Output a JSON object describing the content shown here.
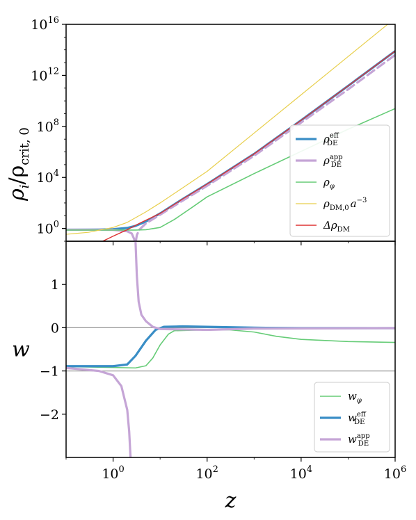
{
  "colors": {
    "rho_eff": "#3a8ec6",
    "rho_app": "#c5a5d6",
    "rho_phi": "#66cc77",
    "rho_dm0": "#e8cf4c",
    "delta_dm": "#dd3333",
    "ref_line": "#999999"
  },
  "chart_data": [
    {
      "type": "line",
      "name": "densities",
      "xscale": "log",
      "yscale": "log",
      "xlim": [
        0.1,
        1000000
      ],
      "ylim": [
        0.1,
        10000000000000000
      ],
      "ylabel": "ρ_i/ρ_crit,0",
      "yticks": [
        {
          "value": 1,
          "base": "10",
          "exp": "0"
        },
        {
          "value": 10000,
          "base": "10",
          "exp": "4"
        },
        {
          "value": 100000000,
          "base": "10",
          "exp": "8"
        },
        {
          "value": 1000000000000,
          "base": "10",
          "exp": "12"
        },
        {
          "value": 10000000000000000,
          "base": "10",
          "exp": "16"
        }
      ],
      "legend_position": "lower-right",
      "series": [
        {
          "key": "rho_eff",
          "name": "ρ_DE^eff",
          "style": "solid",
          "width": 3.2,
          "points": [
            [
              0.1,
              0.8
            ],
            [
              0.5,
              0.82
            ],
            [
              1,
              0.87
            ],
            [
              2,
              1.1
            ],
            [
              3,
              1.6
            ],
            [
              5,
              3.5
            ],
            [
              10,
              15
            ],
            [
              30,
              200
            ],
            [
              100,
              3000
            ],
            [
              1000,
              700000
            ],
            [
              10000,
              300000000
            ],
            [
              100000,
              150000000000
            ],
            [
              1000000,
              80000000000000
            ]
          ]
        },
        {
          "key": "rho_app",
          "name": "ρ_DE^app",
          "style": "solid",
          "width": 3.2,
          "points": [
            [
              0.1,
              0.8
            ],
            [
              0.5,
              0.8
            ],
            [
              1,
              0.78
            ],
            [
              2,
              0.6
            ],
            [
              2.5,
              0.4
            ],
            [
              2.8,
              0.15
            ],
            [
              2.92,
              0.1
            ]
          ]
        },
        {
          "key": "rho_app",
          "name": "",
          "style": "dashed",
          "width": 3.2,
          "points": [
            [
              3.05,
              0.1
            ],
            [
              3.2,
              0.3
            ],
            [
              3.6,
              0.8
            ],
            [
              5,
              2.5
            ],
            [
              10,
              12
            ],
            [
              30,
              150
            ],
            [
              100,
              2200
            ],
            [
              1000,
              500000
            ],
            [
              10000,
              200000000
            ],
            [
              100000,
              80000000000
            ],
            [
              1000000,
              40000000000000
            ]
          ]
        },
        {
          "key": "rho_phi",
          "name": "ρ_φ",
          "style": "solid",
          "width": 1.6,
          "points": [
            [
              0.1,
              0.75
            ],
            [
              1,
              0.75
            ],
            [
              3,
              0.75
            ],
            [
              5,
              0.8
            ],
            [
              10,
              1.2
            ],
            [
              20,
              5
            ],
            [
              50,
              50
            ],
            [
              100,
              300
            ],
            [
              1000,
              20000
            ],
            [
              10000,
              1100000
            ],
            [
              100000,
              60000000
            ],
            [
              1000000,
              2500000000
            ]
          ]
        },
        {
          "key": "rho_dm0",
          "name": "ρ_DM,0 a^-3",
          "style": "solid",
          "width": 1.2,
          "points": [
            [
              0.1,
              0.35
            ],
            [
              0.3,
              0.5
            ],
            [
              1,
              1.2
            ],
            [
              2,
              3
            ],
            [
              5,
              20
            ],
            [
              10,
              100
            ],
            [
              30,
              1500
            ],
            [
              100,
              30000
            ],
            [
              1000,
              30000000
            ],
            [
              10000,
              30000000000
            ],
            [
              100000,
              30000000000000
            ],
            [
              1000000,
              30000000000000000
            ]
          ]
        },
        {
          "key": "delta_dm",
          "name": "Δρ_DM",
          "style": "solid",
          "width": 1.4,
          "points": [
            [
              0.6,
              0.1
            ],
            [
              1,
              0.25
            ],
            [
              2,
              0.8
            ],
            [
              4,
              3
            ],
            [
              10,
              15
            ],
            [
              30,
              200
            ],
            [
              100,
              3000
            ],
            [
              1000,
              700000
            ],
            [
              10000,
              300000000
            ],
            [
              100000,
              150000000000
            ],
            [
              1000000,
              80000000000000
            ]
          ]
        }
      ],
      "legend": [
        {
          "key": "rho_eff",
          "base": "ρ",
          "sub": "DE",
          "sup": "eff",
          "width": 3.2
        },
        {
          "key": "rho_app",
          "base": "ρ",
          "sub": "DE",
          "sup": "app",
          "width": 3.2
        },
        {
          "key": "rho_phi",
          "base": "ρ",
          "sub": "φ",
          "sup": "",
          "width": 1.6
        },
        {
          "key": "rho_dm0",
          "base": "ρ",
          "sub": "DM,0",
          "sup": "",
          "tail": "a",
          "tailsup": "−3",
          "width": 1.2
        },
        {
          "key": "delta_dm",
          "base": "Δρ",
          "sub": "DM",
          "sup": "",
          "width": 1.4
        }
      ]
    },
    {
      "type": "line",
      "name": "equation-of-state",
      "xscale": "log",
      "yscale": "linear",
      "xlim": [
        0.1,
        1000000
      ],
      "ylim": [
        -3,
        2
      ],
      "xlabel": "z",
      "ylabel": "w",
      "yticks": [
        {
          "value": 1,
          "label": "1"
        },
        {
          "value": 0,
          "label": "0"
        },
        {
          "value": -1,
          "label": "−1"
        },
        {
          "value": -2,
          "label": "−2"
        }
      ],
      "xticks": [
        {
          "value": 1,
          "base": "10",
          "exp": "0"
        },
        {
          "value": 100,
          "base": "10",
          "exp": "2"
        },
        {
          "value": 10000,
          "base": "10",
          "exp": "4"
        },
        {
          "value": 1000000,
          "base": "10",
          "exp": "6"
        }
      ],
      "reference_lines": [
        0,
        -1
      ],
      "legend_position": "lower-right",
      "series": [
        {
          "key": "rho_phi",
          "name": "w_φ",
          "style": "solid",
          "width": 1.6,
          "points": [
            [
              0.1,
              -0.9
            ],
            [
              1,
              -0.92
            ],
            [
              3,
              -0.93
            ],
            [
              5,
              -0.88
            ],
            [
              7,
              -0.7
            ],
            [
              10,
              -0.4
            ],
            [
              15,
              -0.15
            ],
            [
              20,
              -0.07
            ],
            [
              100,
              -0.05
            ],
            [
              300,
              -0.05
            ],
            [
              1000,
              -0.1
            ],
            [
              3000,
              -0.2
            ],
            [
              10000,
              -0.27
            ],
            [
              100000,
              -0.32
            ],
            [
              1000000,
              -0.34
            ]
          ]
        },
        {
          "key": "rho_eff",
          "name": "w_DE^eff",
          "style": "solid",
          "width": 3.2,
          "points": [
            [
              0.1,
              -0.89
            ],
            [
              1,
              -0.89
            ],
            [
              2,
              -0.85
            ],
            [
              3,
              -0.65
            ],
            [
              5,
              -0.3
            ],
            [
              8,
              -0.05
            ],
            [
              12,
              0.02
            ],
            [
              30,
              0.03
            ],
            [
              100,
              0.02
            ],
            [
              1000,
              0.0
            ],
            [
              10000,
              -0.01
            ],
            [
              1000000,
              -0.01
            ]
          ]
        },
        {
          "key": "rho_app",
          "name": "w_DE^app",
          "style": "solid",
          "width": 3.2,
          "points": [
            [
              0.1,
              -0.93
            ],
            [
              0.5,
              -1.0
            ],
            [
              1,
              -1.1
            ],
            [
              1.5,
              -1.35
            ],
            [
              2,
              -1.9
            ],
            [
              2.2,
              -2.4
            ],
            [
              2.35,
              -3.0
            ]
          ]
        },
        {
          "key": "rho_app",
          "name": "",
          "style": "solid",
          "width": 3.2,
          "points": [
            [
              3.0,
              2.0
            ],
            [
              3.2,
              1.2
            ],
            [
              3.5,
              0.6
            ],
            [
              4,
              0.3
            ],
            [
              5,
              0.15
            ],
            [
              7,
              0.02
            ],
            [
              10,
              -0.03
            ],
            [
              100,
              -0.05
            ],
            [
              1000,
              -0.02
            ],
            [
              1000000,
              -0.01
            ]
          ]
        }
      ],
      "legend": [
        {
          "key": "rho_phi",
          "base": "w",
          "sub": "φ",
          "sup": "",
          "width": 1.6
        },
        {
          "key": "rho_eff",
          "base": "w",
          "sub": "DE",
          "sup": "eff",
          "width": 3.2
        },
        {
          "key": "rho_app",
          "base": "w",
          "sub": "DE",
          "sup": "app",
          "width": 3.2
        }
      ]
    }
  ]
}
